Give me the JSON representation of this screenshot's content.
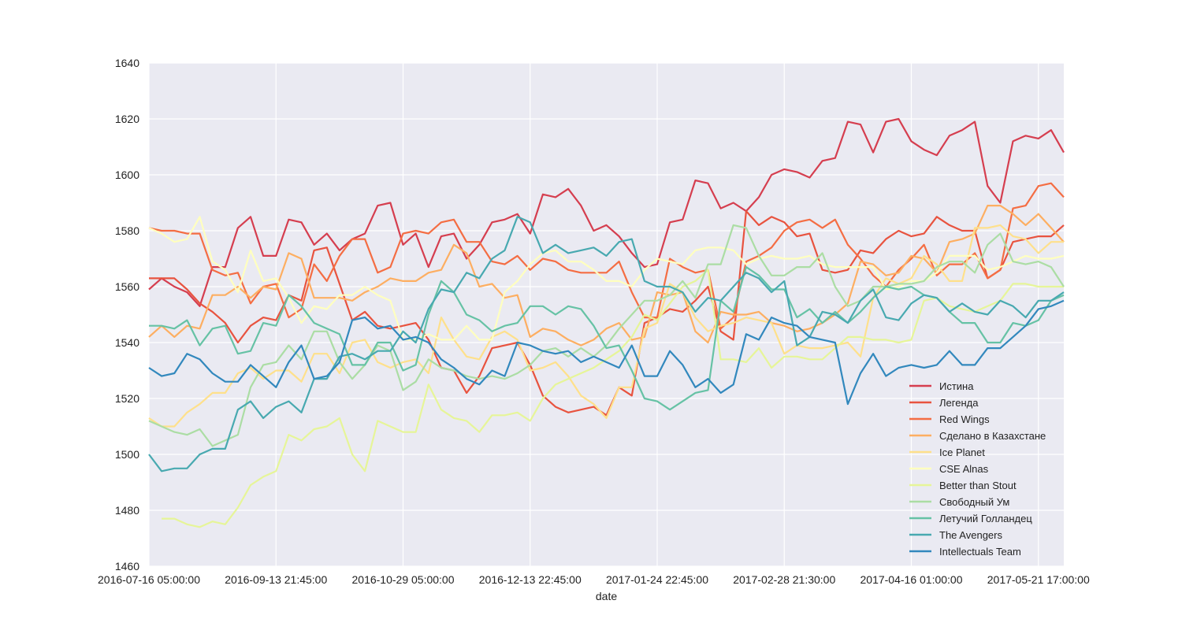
{
  "chart_data": {
    "type": "line",
    "xlabel": "date",
    "ylabel": "",
    "ylim": [
      1460,
      1640
    ],
    "yticks": [
      1460,
      1480,
      1500,
      1520,
      1540,
      1560,
      1580,
      1600,
      1620,
      1640
    ],
    "x_tick_labels": [
      "2016-07-16 05:00:00",
      "2016-09-13 21:45:00",
      "2016-10-29 05:00:00",
      "2016-12-13 22:45:00",
      "2017-01-24 22:45:00",
      "2017-02-28 21:30:00",
      "2017-04-16 01:00:00",
      "2017-05-21 17:00:00"
    ],
    "x_tick_positions": [
      0,
      10,
      20,
      30,
      40,
      50,
      60,
      70
    ],
    "xlim": [
      0,
      72
    ],
    "grid": true,
    "legend_position": "lower right",
    "series": [
      {
        "name": "Истина",
        "color": "#d53e4f",
        "values": [
          1559,
          1563,
          1560,
          1558,
          1553,
          1567,
          1567,
          1581,
          1585,
          1571,
          1571,
          1584,
          1583,
          1575,
          1579,
          1573,
          1577,
          1579,
          1589,
          1590,
          1575,
          1579,
          1567,
          1578,
          1579,
          1570,
          1575,
          1583,
          1584,
          1586,
          1579,
          1593,
          1592,
          1595,
          1589,
          1580,
          1582,
          1578,
          1572,
          1567,
          1568,
          1583,
          1584,
          1598,
          1597,
          1588,
          1590,
          1587,
          1592,
          1600,
          1602,
          1601,
          1599,
          1605,
          1606,
          1619,
          1618,
          1608,
          1619,
          1620,
          1612,
          1609,
          1607,
          1614,
          1616,
          1619,
          1596,
          1590,
          1612,
          1614,
          1613,
          1616,
          1608
        ]
      },
      {
        "name": "Легенда",
        "color": "#e8533f",
        "values": [
          1563,
          1563,
          1563,
          1559,
          1554,
          1551,
          1547,
          1540,
          1546,
          1549,
          1548,
          1557,
          1555,
          1573,
          1574,
          1561,
          1548,
          1551,
          1546,
          1545,
          1546,
          1547,
          1541,
          1531,
          1530,
          1522,
          1528,
          1538,
          1539,
          1540,
          1532,
          1521,
          1517,
          1515,
          1516,
          1517,
          1514,
          1524,
          1521,
          1547,
          1549,
          1552,
          1551,
          1555,
          1560,
          1544,
          1541,
          1587,
          1582,
          1585,
          1583,
          1578,
          1579,
          1566,
          1565,
          1566,
          1573,
          1572,
          1577,
          1580,
          1578,
          1579,
          1585,
          1582,
          1580,
          1580,
          1563,
          1566,
          1576,
          1577,
          1578,
          1578,
          1582
        ]
      },
      {
        "name": "Red Wings",
        "color": "#f46d43",
        "values": [
          1581,
          1580,
          1580,
          1579,
          1579,
          1566,
          1564,
          1565,
          1554,
          1560,
          1561,
          1549,
          1552,
          1568,
          1562,
          1571,
          1577,
          1577,
          1565,
          1567,
          1579,
          1580,
          1579,
          1583,
          1584,
          1576,
          1576,
          1569,
          1568,
          1571,
          1566,
          1570,
          1569,
          1566,
          1565,
          1565,
          1565,
          1569,
          1558,
          1549,
          1549,
          1570,
          1567,
          1565,
          1566,
          1545,
          1549,
          1569,
          1571,
          1574,
          1580,
          1583,
          1584,
          1581,
          1584,
          1575,
          1570,
          1564,
          1560,
          1566,
          1570,
          1575,
          1564,
          1568,
          1568,
          1572,
          1563,
          1566,
          1588,
          1589,
          1596,
          1597,
          1592
        ]
      },
      {
        "name": "Сделано в Казахстане",
        "color": "#fdae61",
        "values": [
          1542,
          1546,
          1542,
          1546,
          1545,
          1557,
          1557,
          1560,
          1556,
          1560,
          1559,
          1572,
          1570,
          1556,
          1556,
          1556,
          1555,
          1558,
          1560,
          1563,
          1562,
          1562,
          1565,
          1566,
          1575,
          1572,
          1560,
          1561,
          1556,
          1557,
          1542,
          1545,
          1544,
          1541,
          1539,
          1541,
          1545,
          1547,
          1541,
          1542,
          1558,
          1557,
          1558,
          1544,
          1540,
          1551,
          1550,
          1550,
          1551,
          1547,
          1546,
          1544,
          1545,
          1547,
          1550,
          1554,
          1569,
          1568,
          1564,
          1565,
          1571,
          1570,
          1565,
          1576,
          1577,
          1579,
          1589,
          1589,
          1586,
          1582,
          1586,
          1581,
          1576
        ]
      },
      {
        "name": "Ice Planet",
        "color": "#fee08b",
        "values": [
          1513,
          1510,
          1510,
          1515,
          1518,
          1522,
          1522,
          1529,
          1531,
          1527,
          1530,
          1530,
          1526,
          1536,
          1536,
          1529,
          1540,
          1541,
          1533,
          1531,
          1533,
          1534,
          1529,
          1549,
          1541,
          1535,
          1534,
          1542,
          1544,
          1541,
          1530,
          1531,
          1533,
          1528,
          1521,
          1518,
          1513,
          1524,
          1524,
          1545,
          1547,
          1561,
          1558,
          1549,
          1544,
          1546,
          1547,
          1549,
          1548,
          1547,
          1536,
          1539,
          1538,
          1538,
          1539,
          1540,
          1535,
          1556,
          1563,
          1561,
          1563,
          1571,
          1568,
          1562,
          1562,
          1581,
          1581,
          1582,
          1578,
          1577,
          1572,
          1576,
          1576
        ]
      },
      {
        "name": "CSE Alnas",
        "color": "#ffffbf",
        "values": [
          1581,
          1579,
          1576,
          1577,
          1585,
          1569,
          1566,
          1558,
          1573,
          1562,
          1563,
          1556,
          1547,
          1553,
          1552,
          1557,
          1557,
          1560,
          1557,
          1555,
          1541,
          1541,
          1543,
          1541,
          1541,
          1546,
          1541,
          1541,
          1558,
          1562,
          1568,
          1572,
          1573,
          1569,
          1569,
          1566,
          1562,
          1562,
          1560,
          1566,
          1570,
          1569,
          1568,
          1573,
          1574,
          1574,
          1573,
          1568,
          1570,
          1571,
          1570,
          1570,
          1571,
          1568,
          1567,
          1567,
          1567,
          1567,
          1559,
          1560,
          1562,
          1562,
          1565,
          1571,
          1571,
          1571,
          1566,
          1567,
          1569,
          1571,
          1570,
          1570,
          1571
        ]
      },
      {
        "name": "Better than Stout",
        "color": "#e6f598",
        "values": [
          null,
          1477,
          1477,
          1475,
          1474,
          1476,
          1475,
          1481,
          1489,
          1492,
          1494,
          1507,
          1505,
          1509,
          1510,
          1513,
          1500,
          1494,
          1512,
          1510,
          1508,
          1508,
          1525,
          1516,
          1513,
          1512,
          1508,
          1514,
          1514,
          1515,
          1512,
          1520,
          1525,
          1527,
          1529,
          1531,
          1534,
          1537,
          1542,
          1550,
          1548,
          1554,
          1560,
          1562,
          1566,
          1534,
          1534,
          1533,
          1538,
          1531,
          1535,
          1535,
          1534,
          1534,
          1538,
          1542,
          1542,
          1541,
          1541,
          1540,
          1541,
          1555,
          1556,
          1553,
          1552,
          1551,
          1553,
          1555,
          1561,
          1561,
          1560,
          1560,
          1560
        ]
      },
      {
        "name": "Свободный Ум",
        "color": "#abdda4",
        "values": [
          1512,
          1510,
          1508,
          1507,
          1509,
          1503,
          1505,
          1507,
          1524,
          1532,
          1533,
          1539,
          1534,
          1544,
          1544,
          1533,
          1527,
          1532,
          1539,
          1537,
          1523,
          1526,
          1534,
          1531,
          1530,
          1528,
          1527,
          1528,
          1527,
          1529,
          1532,
          1537,
          1538,
          1535,
          1538,
          1535,
          1539,
          1545,
          1550,
          1555,
          1555,
          1557,
          1562,
          1556,
          1568,
          1568,
          1582,
          1581,
          1571,
          1564,
          1564,
          1567,
          1567,
          1572,
          1560,
          1553,
          1555,
          1560,
          1560,
          1561,
          1561,
          1562,
          1567,
          1569,
          1569,
          1565,
          1575,
          1579,
          1569,
          1568,
          1569,
          1567,
          1560
        ]
      },
      {
        "name": "Летучий Голландец",
        "color": "#66c2a5",
        "values": [
          1546,
          1546,
          1545,
          1548,
          1539,
          1545,
          1546,
          1536,
          1537,
          1547,
          1546,
          1557,
          1553,
          1547,
          1545,
          1543,
          1532,
          1532,
          1540,
          1540,
          1530,
          1532,
          1550,
          1562,
          1558,
          1550,
          1548,
          1544,
          1546,
          1547,
          1553,
          1553,
          1550,
          1553,
          1552,
          1546,
          1538,
          1539,
          1530,
          1520,
          1519,
          1516,
          1519,
          1522,
          1523,
          1555,
          1551,
          1567,
          1564,
          1559,
          1559,
          1549,
          1552,
          1547,
          1551,
          1547,
          1551,
          1556,
          1560,
          1559,
          1560,
          1557,
          1556,
          1551,
          1547,
          1547,
          1540,
          1540,
          1547,
          1546,
          1548,
          1555,
          1557
        ]
      },
      {
        "name": "The Avengers",
        "color": "#48a9b0",
        "values": [
          1500,
          1494,
          1495,
          1495,
          1500,
          1502,
          1502,
          1516,
          1519,
          1513,
          1517,
          1519,
          1515,
          1527,
          1527,
          1535,
          1536,
          1534,
          1537,
          1537,
          1544,
          1540,
          1552,
          1559,
          1558,
          1565,
          1563,
          1570,
          1573,
          1585,
          1583,
          1572,
          1575,
          1572,
          1573,
          1574,
          1571,
          1576,
          1577,
          1562,
          1560,
          1560,
          1558,
          1551,
          1556,
          1555,
          1560,
          1565,
          1563,
          1558,
          1562,
          1539,
          1542,
          1551,
          1550,
          1547,
          1555,
          1559,
          1549,
          1548,
          1554,
          1557,
          1556,
          1551,
          1554,
          1551,
          1550,
          1555,
          1553,
          1549,
          1555,
          1555,
          1558
        ]
      },
      {
        "name": "Intellectuals Team",
        "color": "#3288bd",
        "values": [
          1531,
          1528,
          1529,
          1536,
          1534,
          1529,
          1526,
          1526,
          1532,
          1528,
          1524,
          1533,
          1539,
          1527,
          1528,
          1533,
          1548,
          1549,
          1545,
          1546,
          1541,
          1542,
          1540,
          1534,
          1531,
          1527,
          1525,
          1530,
          1528,
          1540,
          1539,
          1537,
          1536,
          1537,
          1533,
          1535,
          1533,
          1531,
          1539,
          1528,
          1528,
          1537,
          1532,
          1524,
          1527,
          1522,
          1525,
          1543,
          1541,
          1549,
          1547,
          1546,
          1542,
          1541,
          1540,
          1518,
          1529,
          1536,
          1528,
          1531,
          1532,
          1531,
          1532,
          1537,
          1532,
          1532,
          1538,
          1538,
          1542,
          1546,
          1552,
          1553,
          1555
        ]
      }
    ]
  }
}
